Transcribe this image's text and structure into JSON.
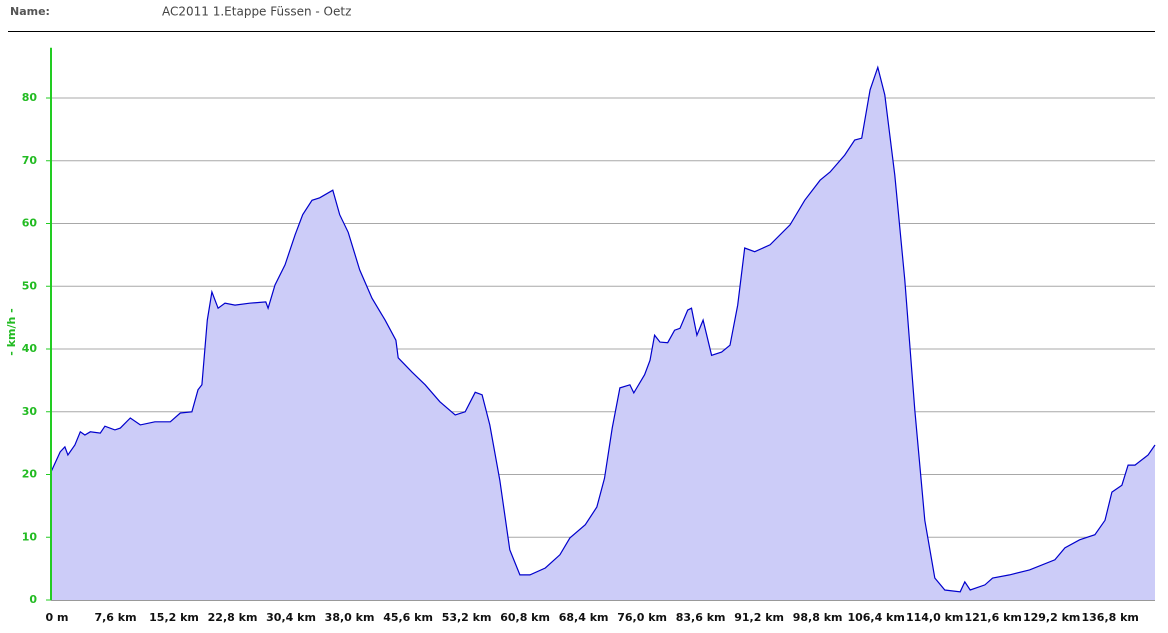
{
  "header": {
    "label": "Name:",
    "value": "AC2011 1.Etappe Füssen - Oetz"
  },
  "chart_data": {
    "type": "area",
    "y_label": "- km/h -",
    "color": "#0000cc",
    "fill_color": "#ccccf8",
    "axis_color": "#22cc22",
    "grid": true,
    "xlim": [
      0,
      143.4
    ],
    "ylim": [
      0,
      88
    ],
    "yticks": [
      0,
      10,
      20,
      30,
      40,
      50,
      60,
      70,
      80
    ],
    "xticks": [
      {
        "value": 0,
        "label": "0 m"
      },
      {
        "value": 7.6,
        "label": "7,6 km"
      },
      {
        "value": 15.2,
        "label": "15,2 km"
      },
      {
        "value": 22.8,
        "label": "22,8 km"
      },
      {
        "value": 30.4,
        "label": "30,4 km"
      },
      {
        "value": 38.0,
        "label": "38,0 km"
      },
      {
        "value": 45.6,
        "label": "45,6 km"
      },
      {
        "value": 53.2,
        "label": "53,2 km"
      },
      {
        "value": 60.8,
        "label": "60,8 km"
      },
      {
        "value": 68.4,
        "label": "68,4 km"
      },
      {
        "value": 76.0,
        "label": "76,0 km"
      },
      {
        "value": 83.6,
        "label": "83,6 km"
      },
      {
        "value": 91.2,
        "label": "91,2 km"
      },
      {
        "value": 98.8,
        "label": "98,8 km"
      },
      {
        "value": 106.4,
        "label": "106,4 km"
      },
      {
        "value": 114.0,
        "label": "114,0 km"
      },
      {
        "value": 121.6,
        "label": "121,6 km"
      },
      {
        "value": 129.2,
        "label": "129,2 km"
      },
      {
        "value": 136.8,
        "label": "136,8 km"
      }
    ],
    "x": [
      0,
      1.2,
      1.8,
      2.2,
      3.1,
      3.8,
      4.4,
      5.1,
      6.4,
      7.0,
      8.3,
      9.0,
      10.3,
      11.6,
      13.5,
      15.5,
      16.8,
      18.3,
      19.1,
      19.6,
      20.3,
      20.9,
      21.7,
      22.6,
      23.9,
      25.8,
      27.9,
      28.2,
      29.1,
      30.4,
      31.7,
      32.7,
      33.9,
      34.9,
      36.6,
      37.5,
      38.6,
      40.1,
      41.7,
      43.4,
      44.8,
      45.1,
      46.9,
      48.6,
      50.5,
      52.5,
      53.8,
      55.1,
      56.0,
      57.0,
      58.3,
      59.6,
      60.9,
      62.2,
      64.2,
      66.1,
      67.4,
      69.4,
      70.9,
      71.9,
      72.9,
      73.9,
      75.2,
      75.7,
      77.1,
      77.8,
      78.4,
      79.1,
      80.1,
      81.0,
      81.7,
      82.7,
      83.2,
      83.9,
      84.7,
      85.8,
      87.1,
      88.2,
      89.2,
      90.1,
      91.4,
      93.4,
      96.0,
      97.9,
      99.9,
      101.2,
      103.1,
      104.4,
      105.3,
      106.4,
      107.4,
      108.3,
      109.6,
      110.9,
      112.2,
      113.5,
      114.8,
      116.1,
      118.1,
      118.7,
      119.4,
      121.3,
      122.3,
      124.5,
      127.1,
      130.4,
      131.7,
      133.6,
      135.6,
      136.9,
      137.8,
      139.1,
      139.9,
      140.8,
      142.5,
      143.4
    ],
    "values": [
      20.4,
      23.6,
      24.4,
      23.1,
      24.7,
      26.8,
      26.3,
      26.8,
      26.6,
      27.7,
      27.1,
      27.4,
      29.0,
      27.9,
      28.4,
      28.4,
      29.8,
      30.0,
      33.5,
      34.3,
      44.6,
      49.1,
      46.5,
      47.3,
      47.0,
      47.3,
      47.5,
      46.5,
      50.2,
      53.4,
      58.2,
      61.4,
      63.7,
      64.1,
      65.3,
      61.4,
      58.6,
      52.6,
      48.1,
      44.6,
      41.4,
      38.6,
      36.3,
      34.3,
      31.6,
      29.5,
      30.0,
      33.1,
      32.7,
      27.9,
      19.1,
      8.0,
      4.0,
      4.0,
      5.1,
      7.2,
      9.9,
      12.0,
      14.8,
      19.4,
      27.4,
      33.8,
      34.3,
      33.0,
      35.9,
      38.2,
      42.2,
      41.1,
      41.0,
      43.0,
      43.3,
      46.2,
      46.5,
      42.2,
      44.6,
      39.0,
      39.5,
      40.6,
      47.0,
      56.1,
      55.5,
      56.6,
      59.8,
      63.7,
      66.9,
      68.2,
      70.9,
      73.3,
      73.6,
      81.3,
      84.9,
      80.5,
      67.7,
      51.0,
      30.3,
      12.7,
      3.5,
      1.6,
      1.3,
      2.9,
      1.6,
      2.4,
      3.5,
      4.0,
      4.8,
      6.4,
      8.3,
      9.6,
      10.4,
      12.7,
      17.2,
      18.3,
      21.5,
      21.5,
      23.1,
      24.7
    ]
  }
}
